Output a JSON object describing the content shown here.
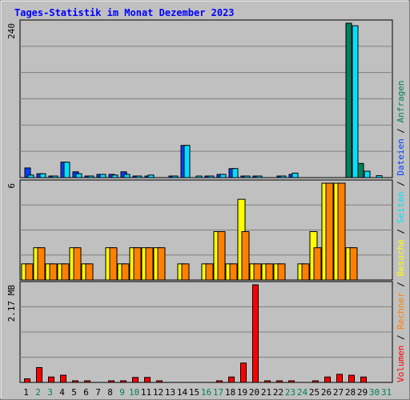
{
  "chart_data": {
    "type": "bar",
    "title": "Tages-Statistik im Monat Dezember 2023",
    "days": [
      "1",
      "2",
      "3",
      "4",
      "5",
      "6",
      "7",
      "8",
      "9",
      "10",
      "11",
      "12",
      "13",
      "14",
      "15",
      "16",
      "17",
      "18",
      "19",
      "20",
      "21",
      "22",
      "23",
      "24",
      "25",
      "26",
      "27",
      "28",
      "29",
      "30",
      "31"
    ],
    "weekend_days": [
      2,
      3,
      9,
      10,
      16,
      17,
      23,
      24,
      30,
      31
    ],
    "colors": {
      "title": "#0000ff",
      "weekday_label": "#000000",
      "weekend_label": "#00805c",
      "anfragen": "#00805c",
      "dateien": "#0040ff",
      "seiten": "#00e0ff",
      "besuche": "#ffff00",
      "rechner": "#ff8000",
      "volumen": "#ff0000"
    },
    "panels": [
      {
        "id": "hits",
        "max_label": "240",
        "ymax": 240,
        "series": [
          {
            "name": "Anfragen",
            "color": "#00805c",
            "values": [
              0,
              0,
              0,
              0,
              0,
              0,
              0,
              0,
              0,
              0,
              0,
              0,
              0,
              0,
              0,
              0,
              0,
              0,
              0,
              0,
              0,
              0,
              0,
              0,
              0,
              0,
              0,
              240,
              22,
              0,
              0
            ]
          },
          {
            "name": "Dateien",
            "color": "#0040ff",
            "values": [
              15,
              6,
              2,
              24,
              9,
              2,
              5,
              5,
              9,
              2,
              1,
              0,
              1,
              50,
              0,
              2,
              5,
              14,
              2,
              1,
              0,
              2,
              5,
              0,
              0,
              0,
              0,
              0,
              0,
              0,
              0
            ]
          },
          {
            "name": "Seiten",
            "color": "#00e0ff",
            "values": [
              4,
              6,
              1,
              24,
              6,
              2,
              5,
              4,
              5,
              2,
              4,
              0,
              1,
              50,
              1,
              2,
              5,
              14,
              2,
              1,
              0,
              1,
              7,
              0,
              0,
              0,
              0,
              236,
              10,
              3,
              0
            ]
          }
        ]
      },
      {
        "id": "visits",
        "max_label": "6",
        "ymax": 6,
        "series": [
          {
            "name": "Besuche",
            "color": "#ffff00",
            "values": [
              1,
              2,
              1,
              1,
              2,
              1,
              0,
              2,
              1,
              2,
              2,
              2,
              0,
              1,
              0,
              1,
              3,
              1,
              5,
              1,
              1,
              1,
              0,
              1,
              3,
              6,
              6,
              2,
              0,
              0,
              0
            ]
          },
          {
            "name": "Rechner",
            "color": "#ff8000",
            "values": [
              1,
              2,
              1,
              1,
              2,
              1,
              0,
              2,
              1,
              2,
              2,
              2,
              0,
              1,
              0,
              1,
              3,
              1,
              3,
              1,
              1,
              1,
              0,
              1,
              2,
              6,
              6,
              2,
              0,
              0,
              0
            ]
          }
        ]
      },
      {
        "id": "volume",
        "max_label": "2.17 MB",
        "ymax": 2.17,
        "series": [
          {
            "name": "Volumen",
            "color": "#ff0000",
            "values": [
              0.08,
              0.33,
              0.12,
              0.16,
              0.03,
              0.02,
              0,
              0.02,
              0.02,
              0.11,
              0.11,
              0.03,
              0,
              0,
              0,
              0,
              0.02,
              0.12,
              0.43,
              2.17,
              0.02,
              0.02,
              0.02,
              0,
              0.02,
              0.12,
              0.18,
              0.16,
              0.12,
              0,
              0
            ]
          }
        ]
      }
    ],
    "legend": {
      "hits": [
        "Anfragen",
        "/",
        "Dateien",
        "/",
        "Seiten",
        "/",
        "Besuche",
        "/",
        "Rechner",
        "/",
        "Volumen"
      ]
    }
  }
}
